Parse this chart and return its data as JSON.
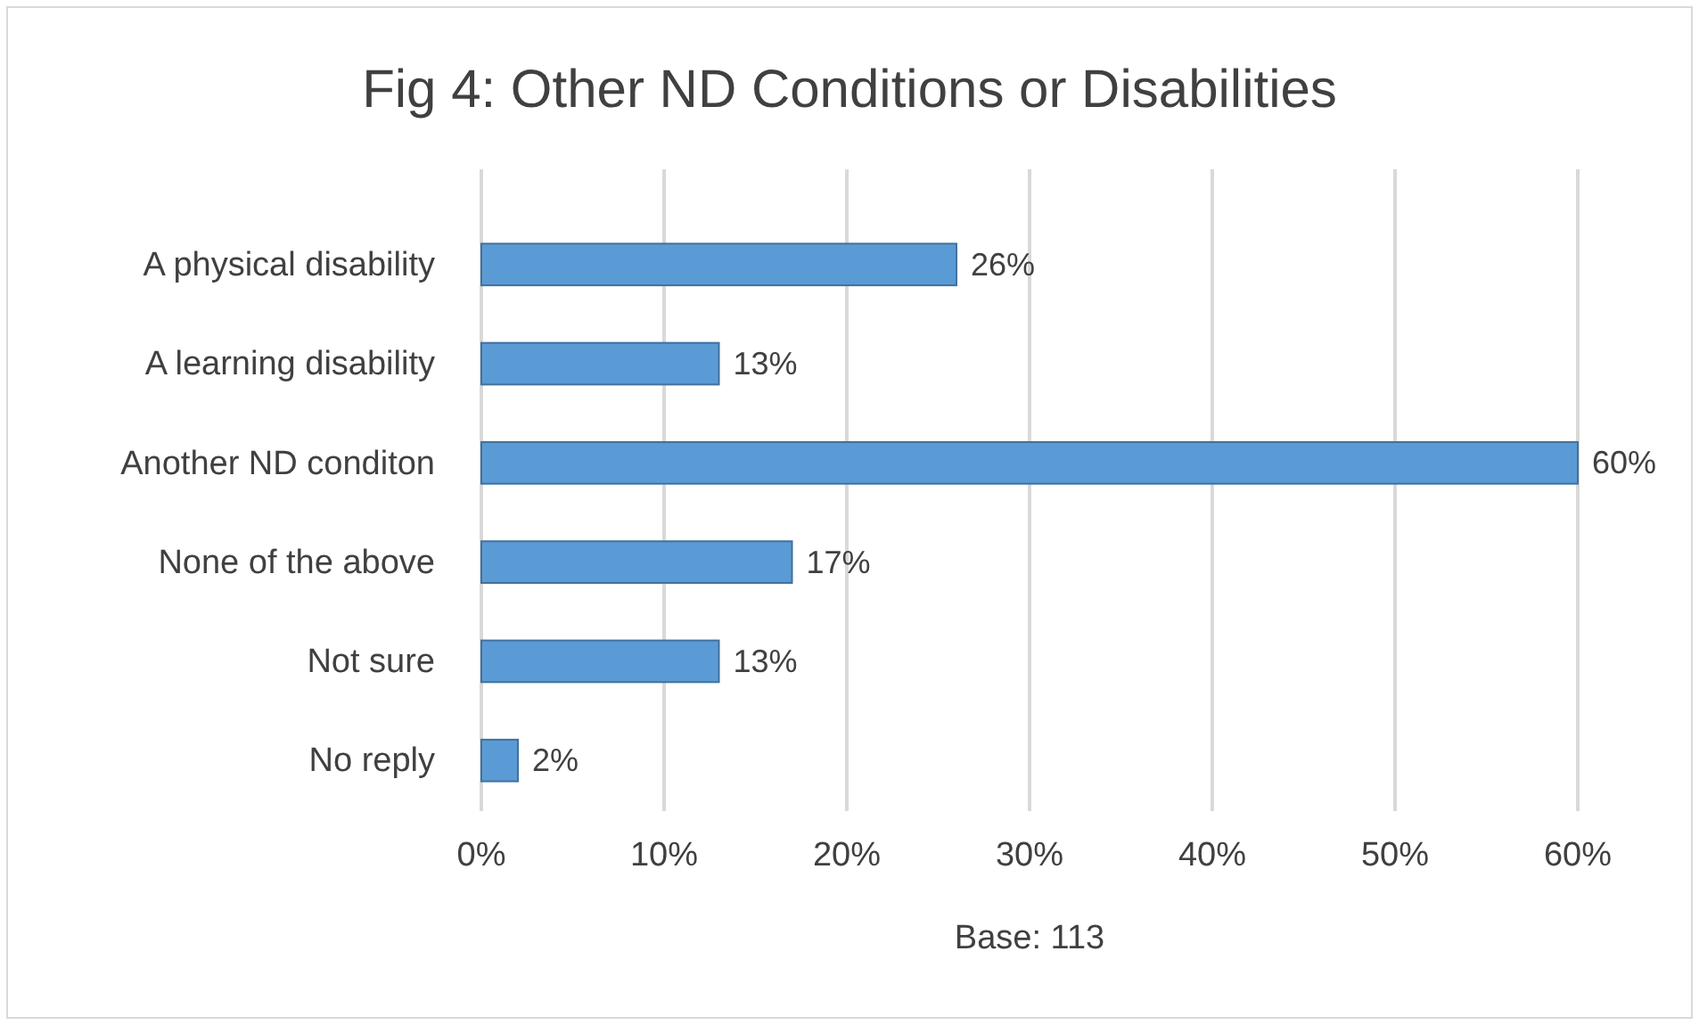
{
  "chart_data": {
    "type": "bar",
    "orientation": "horizontal",
    "title": "Fig 4: Other ND Conditions or Disabilities",
    "xlabel": "Base: 113",
    "categories": [
      "A physical disability",
      "A learning disability",
      "Another ND conditon",
      "None of the above",
      "Not sure",
      "No reply"
    ],
    "values": [
      26,
      13,
      60,
      17,
      13,
      2
    ],
    "value_labels": [
      "26%",
      "13%",
      "60%",
      "17%",
      "13%",
      "2%"
    ],
    "color": "#5b9bd5",
    "xlim": [
      0,
      60
    ],
    "xticks": [
      {
        "value": 0,
        "label": "0%"
      },
      {
        "value": 10,
        "label": "10%"
      },
      {
        "value": 20,
        "label": "20%"
      },
      {
        "value": 30,
        "label": "30%"
      },
      {
        "value": 40,
        "label": "40%"
      },
      {
        "value": 50,
        "label": "50%"
      },
      {
        "value": 60,
        "label": "60%"
      }
    ],
    "grid": "x"
  }
}
